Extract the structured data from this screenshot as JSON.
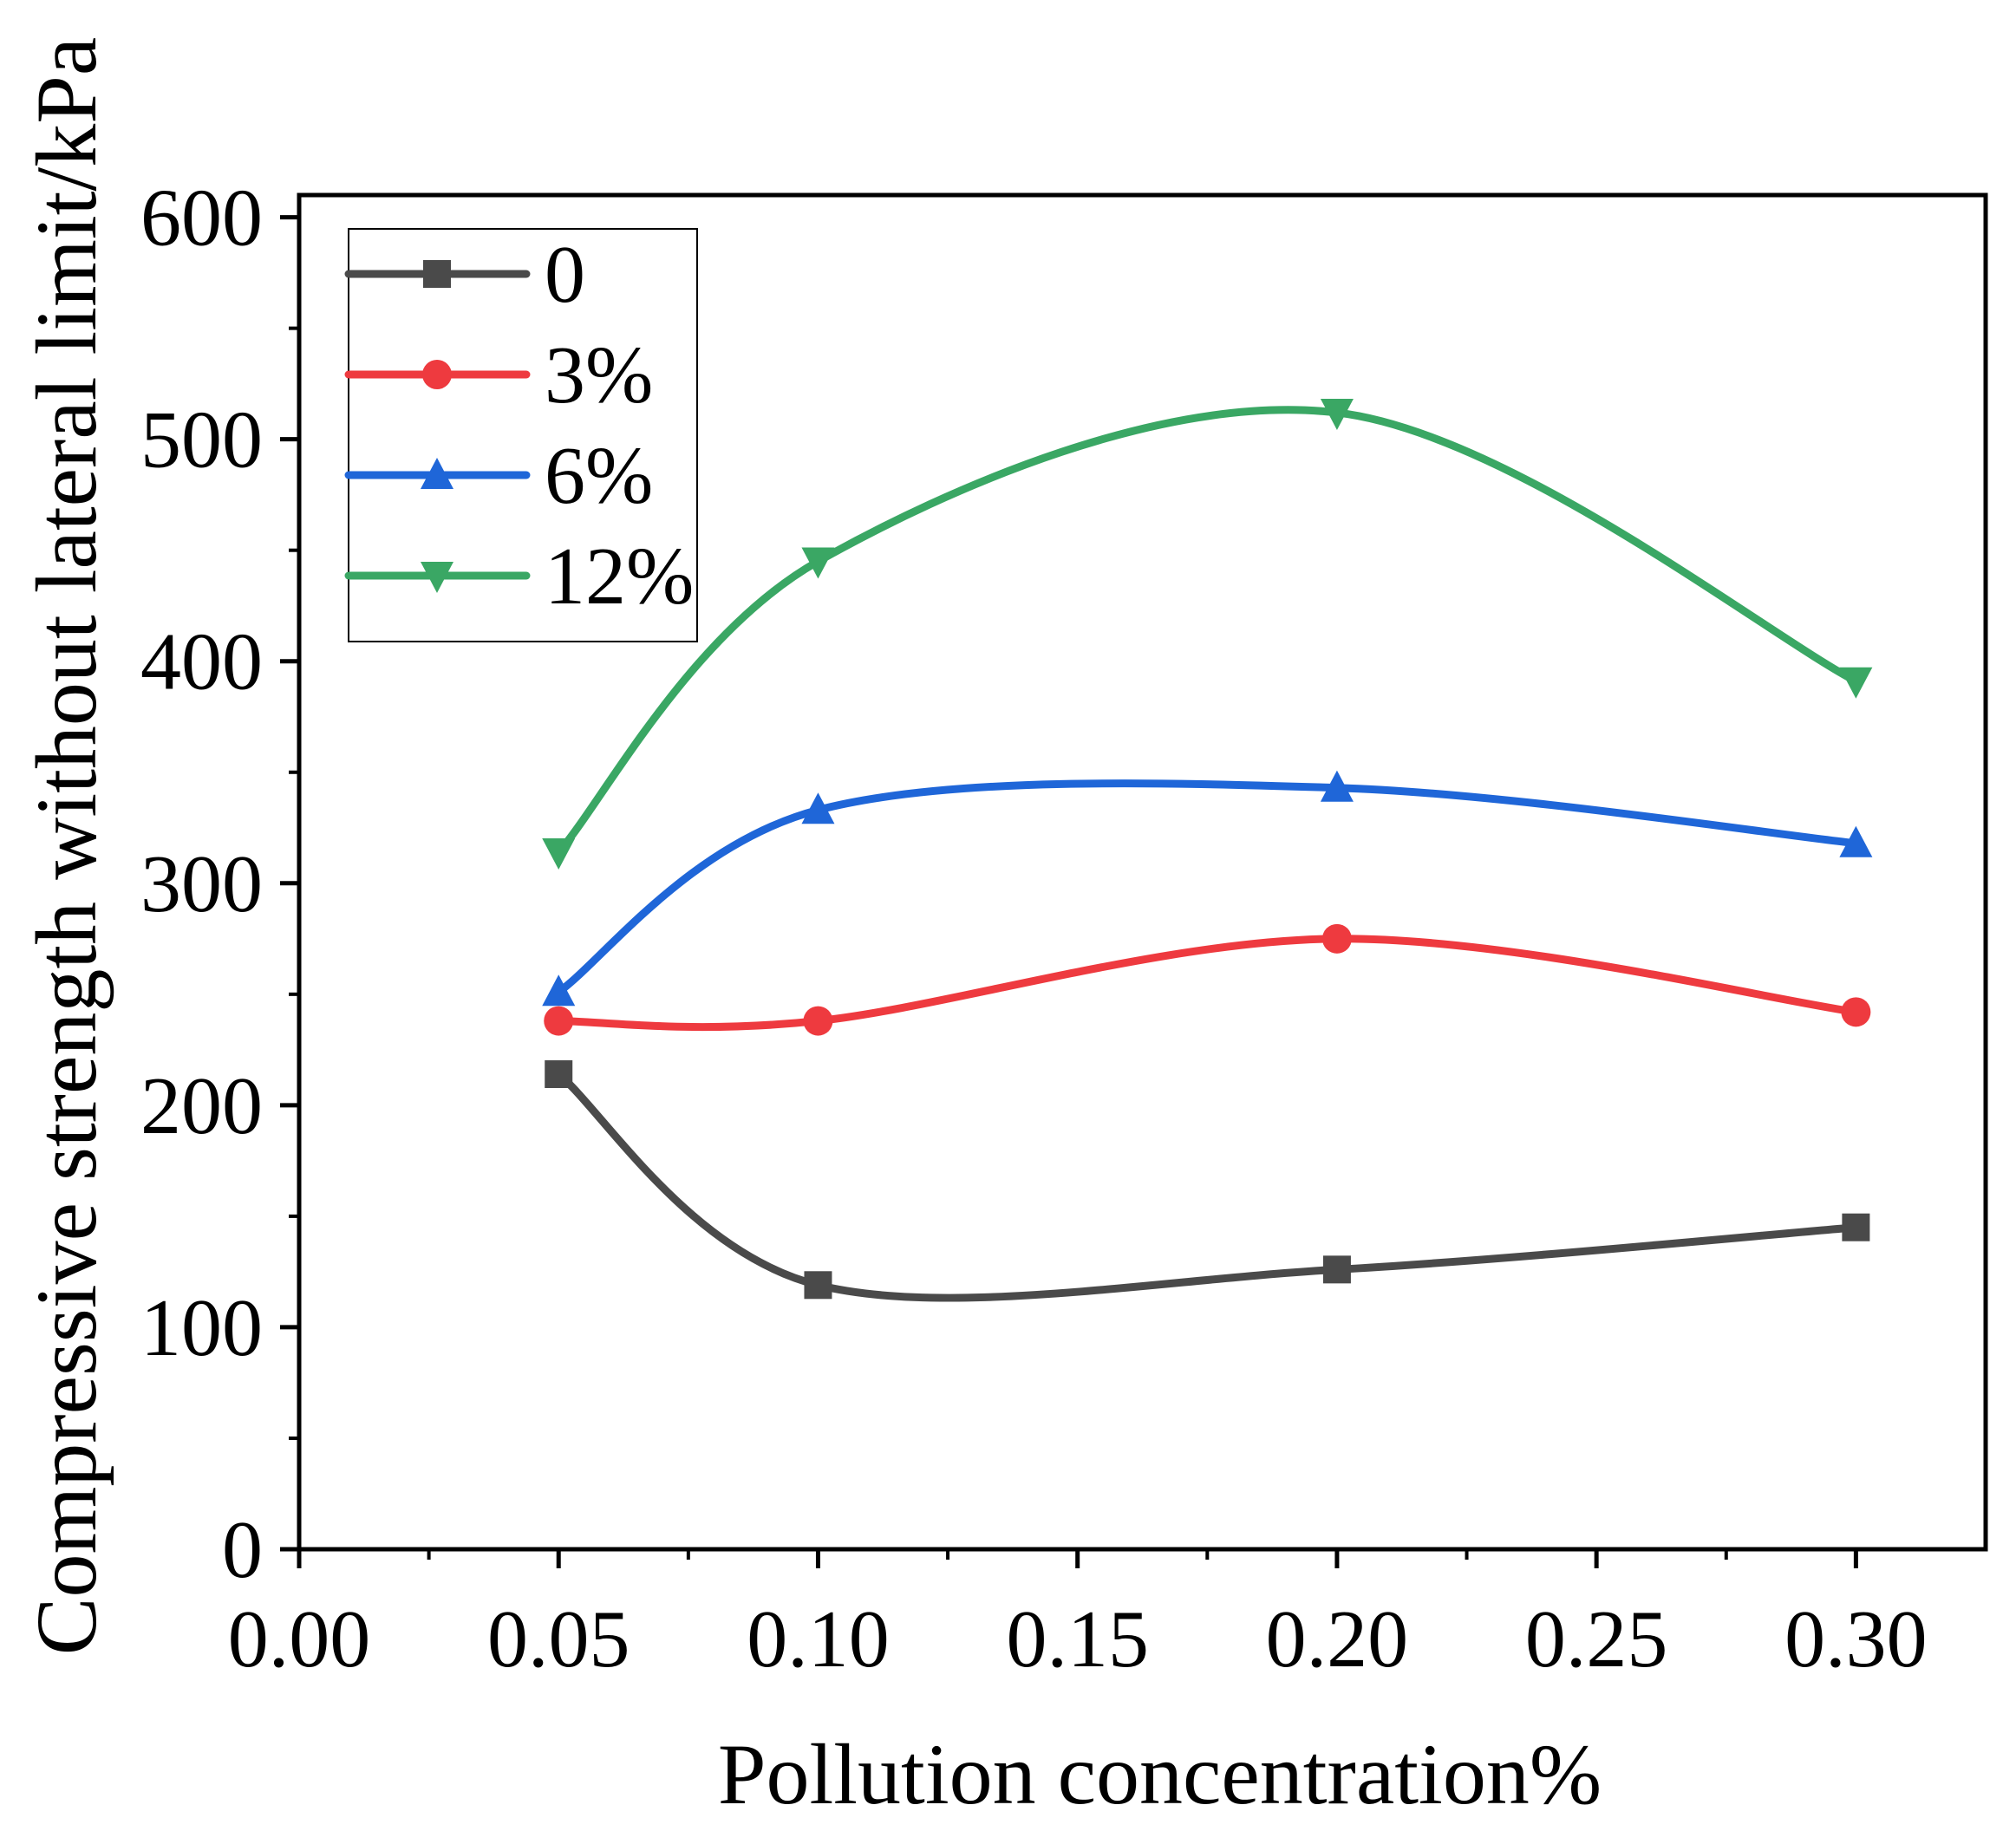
{
  "chart_data": {
    "type": "line",
    "title": "",
    "xlabel": "Pollution concentration%",
    "ylabel": "Compressive strength without lateral limit/kPa",
    "xlim": [
      0.0,
      0.325
    ],
    "ylim": [
      0,
      610
    ],
    "x_ticks": [
      0.0,
      0.05,
      0.1,
      0.15,
      0.2,
      0.25,
      0.3
    ],
    "x_tick_labels": [
      "0.00",
      "0.05",
      "0.10",
      "0.15",
      "0.20",
      "0.25",
      "0.30"
    ],
    "y_ticks": [
      0,
      100,
      200,
      300,
      400,
      500,
      600
    ],
    "y_tick_labels": [
      "0",
      "100",
      "200",
      "300",
      "400",
      "500",
      "600"
    ],
    "x": [
      0.05,
      0.1,
      0.2,
      0.3
    ],
    "smooth": true,
    "grid": false,
    "legend_position": "top-left",
    "series": [
      {
        "name": "0",
        "values": [
          214,
          119,
          126,
          145
        ],
        "color": "#4a4a4a",
        "marker": "square"
      },
      {
        "name": "3%",
        "values": [
          238,
          238,
          275,
          242
        ],
        "color": "#ee3a3f",
        "marker": "circle"
      },
      {
        "name": "6%",
        "values": [
          251,
          333,
          343,
          318
        ],
        "color": "#1f66d8",
        "marker": "triangle-up"
      },
      {
        "name": "12%",
        "values": [
          314,
          445,
          512,
          391
        ],
        "color": "#3aa764",
        "marker": "triangle-down"
      }
    ]
  }
}
